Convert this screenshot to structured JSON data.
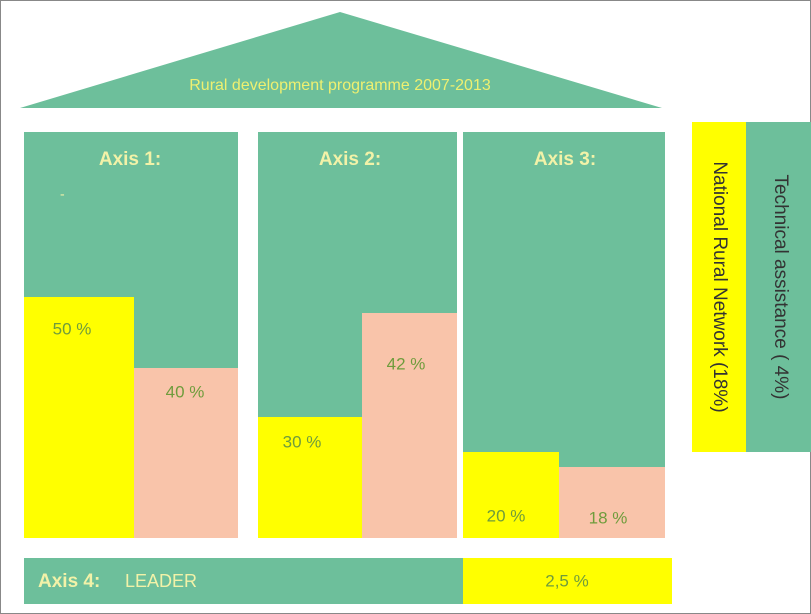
{
  "roof": {
    "title": "Rural development programme 2007-2013"
  },
  "axes": [
    {
      "title": "Axis 1:",
      "note": "-",
      "bars": [
        {
          "label": "50 %"
        },
        {
          "label": "40 %"
        }
      ]
    },
    {
      "title": "Axis 2:",
      "bars": [
        {
          "label": "30 %"
        },
        {
          "label": "42 %"
        }
      ]
    },
    {
      "title": "Axis 3:",
      "bars": [
        {
          "label": "20 %"
        },
        {
          "label": "18 %"
        }
      ]
    }
  ],
  "side": [
    {
      "label": "National Rural Network (18%)"
    },
    {
      "label": "Technical assistance ( 4%)"
    }
  ],
  "axis4": {
    "title": "Axis 4:",
    "name": "LEADER",
    "value": "2,5 %"
  }
}
